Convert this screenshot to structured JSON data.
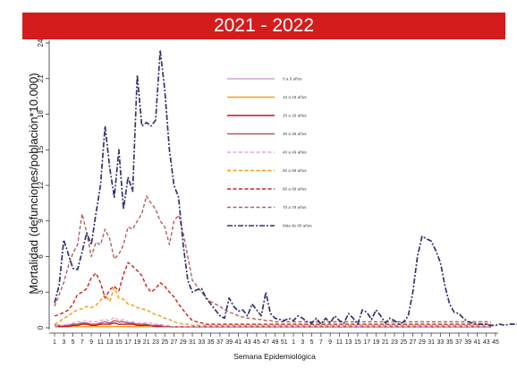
{
  "chart_data": {
    "type": "line",
    "title": "2021 - 2022",
    "xlabel": "Semana Epidemiológica",
    "ylabel": "Mortalidad (defunciones/población*10.000)",
    "ylim": [
      0,
      24
    ],
    "yticks": [
      0,
      3,
      6,
      9,
      12,
      15,
      18,
      21,
      24
    ],
    "xticks": [
      "1",
      "3",
      "5",
      "7",
      "9",
      "11",
      "13",
      "15",
      "17",
      "19",
      "21",
      "23",
      "25",
      "27",
      "29",
      "31",
      "33",
      "35",
      "37",
      "39",
      "41",
      "43",
      "45",
      "47",
      "49",
      "51",
      "1",
      "3",
      "5",
      "7",
      "9",
      "11",
      "13",
      "15",
      "17",
      "19",
      "21",
      "23",
      "25",
      "27",
      "29",
      "31",
      "33",
      "35",
      "37",
      "39",
      "41",
      "43",
      "45"
    ],
    "legend_position": "top-center",
    "grid": false,
    "series": [
      {
        "name": "0 a 9 años",
        "color": "#d6a3d8",
        "dash": "solid",
        "values": [
          0.1,
          0.1,
          0.1,
          0.1,
          0.1,
          0.1,
          0.1,
          0.1,
          0.1,
          0.1,
          0.1,
          0.1,
          0.1,
          0.1,
          0.1,
          0.1,
          0.1,
          0.1,
          0.1,
          0.1,
          0.1,
          0.1,
          0.1,
          0.1,
          0.1,
          0.1,
          0.05,
          0.05,
          0.05,
          0.05,
          0.05,
          0.05,
          0.05,
          0.05,
          0.05,
          0.05,
          0.05,
          0.05,
          0.05,
          0.05,
          0.05,
          0.05,
          0.05,
          0.05,
          0.05,
          0.05,
          0.05,
          0.05,
          0.05,
          0.05,
          0.05,
          0.05,
          0.05,
          0.05,
          0.05,
          0.05,
          0.05,
          0.05,
          0.05,
          0.05,
          0.05,
          0.05,
          0.05,
          0.05,
          0.05,
          0.05,
          0.05,
          0.05,
          0.05,
          0.05,
          0.05,
          0.05,
          0.05,
          0.05,
          0.05,
          0.05,
          0.05,
          0.05,
          0.05,
          0.05,
          0.05,
          0.05,
          0.05,
          0.05,
          0.05,
          0.05,
          0.05,
          0.05,
          0.05,
          0.05,
          0.05,
          0.05,
          0.05,
          0.05,
          0.05,
          0.05
        ]
      },
      {
        "name": "10 a 19 años",
        "color": "#f0a020",
        "dash": "solid",
        "values": [
          0.1,
          0.1,
          0.1,
          0.1,
          0.1,
          0.1,
          0.1,
          0.1,
          0.1,
          0.1,
          0.1,
          0.1,
          0.1,
          0.1,
          0.1,
          0.1,
          0.1,
          0.1,
          0.1,
          0.1,
          0.1,
          0.1,
          0.1,
          0.1,
          0.1,
          0.1,
          0.05,
          0.05,
          0.05,
          0.05,
          0.05,
          0.05,
          0.05,
          0.05,
          0.05,
          0.05,
          0.05,
          0.05,
          0.05,
          0.05,
          0.05,
          0.05,
          0.05,
          0.05,
          0.05,
          0.05,
          0.05,
          0.05,
          0.05,
          0.05,
          0.05,
          0.05,
          0.05,
          0.05,
          0.05,
          0.05,
          0.05,
          0.05,
          0.05,
          0.05,
          0.05,
          0.05,
          0.05,
          0.05,
          0.05,
          0.05,
          0.05,
          0.05,
          0.05,
          0.05,
          0.05,
          0.05,
          0.05,
          0.05,
          0.05,
          0.05,
          0.05,
          0.05,
          0.05,
          0.05,
          0.05,
          0.05,
          0.05,
          0.05,
          0.05,
          0.05,
          0.05,
          0.05,
          0.05,
          0.05,
          0.05,
          0.05,
          0.05,
          0.05,
          0.05,
          0.05
        ]
      },
      {
        "name": "20 a 29 años",
        "color": "#c01818",
        "dash": "solid",
        "values": [
          0.1,
          0.1,
          0.1,
          0.1,
          0.2,
          0.2,
          0.3,
          0.3,
          0.2,
          0.2,
          0.3,
          0.3,
          0.3,
          0.4,
          0.3,
          0.3,
          0.3,
          0.3,
          0.2,
          0.2,
          0.2,
          0.2,
          0.1,
          0.1,
          0.1,
          0.1,
          0.1,
          0.1,
          0.1,
          0.1,
          0.1,
          0.1,
          0.1,
          0.1,
          0.1,
          0.1,
          0.1,
          0.1,
          0.1,
          0.1,
          0.1,
          0.1,
          0.1,
          0.1,
          0.1,
          0.1,
          0.1,
          0.1,
          0.1,
          0.1,
          0.1,
          0.1,
          0.1,
          0.1,
          0.1,
          0.1,
          0.1,
          0.1,
          0.1,
          0.1,
          0.1,
          0.1,
          0.1,
          0.1,
          0.1,
          0.1,
          0.1,
          0.1,
          0.1,
          0.1,
          0.1,
          0.1,
          0.1,
          0.1,
          0.1,
          0.1,
          0.1,
          0.1,
          0.1,
          0.1,
          0.1,
          0.1,
          0.1,
          0.1,
          0.1,
          0.1,
          0.1,
          0.1,
          0.1,
          0.1,
          0.1,
          0.1,
          0.1,
          0.1,
          0.1,
          0.1
        ]
      },
      {
        "name": "30 a 39 años",
        "color": "#b05858",
        "dash": "solid",
        "values": [
          0.2,
          0.2,
          0.2,
          0.2,
          0.3,
          0.3,
          0.4,
          0.4,
          0.3,
          0.3,
          0.4,
          0.5,
          0.4,
          0.6,
          0.5,
          0.5,
          0.4,
          0.4,
          0.3,
          0.3,
          0.3,
          0.2,
          0.2,
          0.2,
          0.1,
          0.1,
          0.1,
          0.1,
          0.1,
          0.1,
          0.1,
          0.1,
          0.1,
          0.1,
          0.1,
          0.1,
          0.1,
          0.1,
          0.1,
          0.1,
          0.1,
          0.1,
          0.1,
          0.1,
          0.1,
          0.1,
          0.1,
          0.1,
          0.1,
          0.1,
          0.1,
          0.1,
          0.1,
          0.1,
          0.1,
          0.1,
          0.1,
          0.1,
          0.1,
          0.1,
          0.1,
          0.1,
          0.1,
          0.1,
          0.1,
          0.1,
          0.1,
          0.1,
          0.1,
          0.1,
          0.1,
          0.1,
          0.1,
          0.1,
          0.1,
          0.1,
          0.1,
          0.1,
          0.1,
          0.1,
          0.1,
          0.1,
          0.1,
          0.1,
          0.1,
          0.1,
          0.1,
          0.1,
          0.1,
          0.1,
          0.1,
          0.1,
          0.1,
          0.1,
          0.1,
          0.1
        ]
      },
      {
        "name": "40 a 49 años",
        "color": "#e2a6e6",
        "dash": "dash",
        "values": [
          0.1,
          0.2,
          0.2,
          0.3,
          0.4,
          0.5,
          0.5,
          0.6,
          0.5,
          0.5,
          0.6,
          0.7,
          0.6,
          0.9,
          0.6,
          0.7,
          0.5,
          0.5,
          0.4,
          0.4,
          0.4,
          0.4,
          0.3,
          0.3,
          0.2,
          0.2,
          0.1,
          0.1,
          0.1,
          0.1,
          0.1,
          0.1,
          0.1,
          0.1,
          0.1,
          0.1,
          0.1,
          0.1,
          0.1,
          0.1,
          0.1,
          0.1,
          0.1,
          0.1,
          0.1,
          0.1,
          0.1,
          0.1,
          0.1,
          0.1,
          0.1,
          0.1,
          0.1,
          0.1,
          0.1,
          0.1,
          0.1,
          0.1,
          0.1,
          0.1,
          0.1,
          0.1,
          0.1,
          0.1,
          0.1,
          0.1,
          0.1,
          0.1,
          0.1,
          0.1,
          0.1,
          0.1,
          0.1,
          0.1,
          0.1,
          0.1,
          0.1,
          0.1,
          0.1,
          0.1,
          0.1,
          0.1,
          0.1,
          0.1,
          0.1,
          0.1,
          0.1,
          0.1,
          0.1,
          0.1,
          0.1,
          0.1,
          0.1,
          0.1,
          0.1,
          0.1
        ]
      },
      {
        "name": "50 a 59 años",
        "color": "#f29a10",
        "dash": "dash",
        "values": [
          0.3,
          0.5,
          0.8,
          1.0,
          1.3,
          1.5,
          1.6,
          1.8,
          1.7,
          1.9,
          2.3,
          2.8,
          2.2,
          3.4,
          2.5,
          2.4,
          2.0,
          1.9,
          1.7,
          1.6,
          1.5,
          1.3,
          1.1,
          1.0,
          0.8,
          0.7,
          0.5,
          0.4,
          0.3,
          0.3,
          0.2,
          0.2,
          0.2,
          0.2,
          0.2,
          0.2,
          0.2,
          0.2,
          0.2,
          0.2,
          0.2,
          0.2,
          0.2,
          0.2,
          0.2,
          0.2,
          0.2,
          0.2,
          0.2,
          0.2,
          0.2,
          0.2,
          0.2,
          0.2,
          0.2,
          0.2,
          0.2,
          0.2,
          0.2,
          0.2,
          0.2,
          0.2,
          0.2,
          0.2,
          0.2,
          0.2,
          0.2,
          0.2,
          0.2,
          0.2,
          0.2,
          0.2,
          0.2,
          0.2,
          0.2,
          0.2,
          0.2,
          0.2,
          0.2,
          0.2,
          0.2,
          0.2,
          0.2,
          0.2,
          0.2,
          0.2,
          0.2,
          0.2,
          0.2,
          0.2,
          0.2,
          0.2,
          0.2,
          0.2,
          0.2,
          0.2
        ]
      },
      {
        "name": "60 a 69 años",
        "color": "#c8201c",
        "dash": "dash",
        "values": [
          1.0,
          1.1,
          1.3,
          1.5,
          2.0,
          2.8,
          3.0,
          3.3,
          4.2,
          4.6,
          3.8,
          2.5,
          3.2,
          3.5,
          3.1,
          4.5,
          5.5,
          5.2,
          4.8,
          4.4,
          3.5,
          3.0,
          3.3,
          3.8,
          3.5,
          3.0,
          2.6,
          2.0,
          1.5,
          1.0,
          0.6,
          0.5,
          0.4,
          0.3,
          0.3,
          0.3,
          0.3,
          0.3,
          0.3,
          0.3,
          0.3,
          0.3,
          0.3,
          0.3,
          0.3,
          0.3,
          0.3,
          0.3,
          0.3,
          0.3,
          0.3,
          0.3,
          0.3,
          0.3,
          0.3,
          0.3,
          0.3,
          0.3,
          0.3,
          0.3,
          0.3,
          0.3,
          0.3,
          0.3,
          0.3,
          0.3,
          0.3,
          0.3,
          0.3,
          0.3,
          0.3,
          0.3,
          0.3,
          0.3,
          0.3,
          0.3,
          0.3,
          0.3,
          0.3,
          0.3,
          0.3,
          0.3,
          0.3,
          0.3,
          0.3,
          0.3,
          0.3,
          0.3,
          0.3,
          0.3,
          0.3,
          0.3,
          0.3,
          0.3,
          0.3,
          0.3
        ]
      },
      {
        "name": "70 a 79 años",
        "color": "#b06060",
        "dash": "dash",
        "values": [
          1.8,
          2.8,
          3.8,
          5.2,
          6.3,
          7.0,
          9.6,
          8.0,
          6.0,
          7.2,
          7.0,
          8.3,
          7.5,
          5.8,
          6.2,
          7.0,
          8.5,
          8.3,
          9.0,
          9.6,
          11.1,
          10.5,
          10.0,
          9.0,
          8.5,
          7.0,
          9.0,
          9.5,
          8.0,
          6.0,
          4.0,
          3.5,
          3.0,
          2.5,
          2.2,
          2.0,
          1.8,
          1.5,
          1.3,
          1.2,
          1.0,
          0.9,
          0.8,
          0.8,
          0.7,
          0.7,
          0.6,
          0.6,
          0.5,
          0.5,
          0.5,
          0.5,
          0.5,
          0.5,
          0.5,
          0.5,
          0.5,
          0.5,
          0.5,
          0.5,
          0.5,
          0.5,
          0.5,
          0.5,
          0.5,
          0.5,
          0.5,
          0.5,
          0.5,
          0.5,
          0.5,
          0.5,
          0.5,
          0.5,
          0.5,
          0.5,
          0.5,
          0.5,
          0.5,
          0.5,
          0.5,
          0.5,
          0.5,
          0.5,
          0.5,
          0.5,
          0.5,
          0.5,
          0.5,
          0.5,
          0.5,
          0.5,
          0.5,
          0.5,
          0.5,
          0.5
        ]
      },
      {
        "name": "Más de 80 años",
        "color": "#33336b",
        "dash": "dashdot",
        "values": [
          2.1,
          3.6,
          7.4,
          6.2,
          5.0,
          4.9,
          6.4,
          8.0,
          7.0,
          9.6,
          12.0,
          17.0,
          13.5,
          11.0,
          15.0,
          10.0,
          12.7,
          11.5,
          21.3,
          17.0,
          17.3,
          17.0,
          17.5,
          23.4,
          20.0,
          15.0,
          12.0,
          11.0,
          7.0,
          4.0,
          3.0,
          3.2,
          3.3,
          2.5,
          2.0,
          1.5,
          1.0,
          0.8,
          2.5,
          1.8,
          1.4,
          1.5,
          1.0,
          2.0,
          1.5,
          1.0,
          3.0,
          1.2,
          0.8,
          0.7,
          0.6,
          0.8,
          0.6,
          1.0,
          0.8,
          0.5,
          0.4,
          0.8,
          0.3,
          0.8,
          0.4,
          1.0,
          0.6,
          0.4,
          1.2,
          0.8,
          0.3,
          1.5,
          1.3,
          0.7,
          1.5,
          1.0,
          0.4,
          0.8,
          0.6,
          0.3,
          0.5,
          1.0,
          3.0,
          6.0,
          7.7,
          7.5,
          7.3,
          6.5,
          5.5,
          3.5,
          2.0,
          1.3,
          1.2,
          0.8,
          0.5,
          0.4,
          0.3,
          0.3,
          0.3,
          0.2,
          0.2,
          0.3,
          0.2,
          0.3,
          0.3,
          0.3,
          0.3,
          0.3,
          0.2,
          0.2,
          0.3,
          0.3,
          0.4,
          0.3,
          0.3,
          0.5,
          0.3,
          0.2,
          0.3,
          0.3,
          0.4,
          0.3,
          0.8,
          2.3,
          1.5,
          1.8,
          3.2,
          2.0,
          1.5,
          2.6,
          1.8,
          1.2,
          2.2,
          1.0,
          0.6,
          0.4,
          0.3,
          0.3,
          0.2,
          0.2,
          0.2,
          0.2,
          0.2,
          0.2,
          0.2,
          0.2,
          0.1,
          0.1,
          0.1,
          0.1,
          0.1
        ]
      }
    ]
  }
}
